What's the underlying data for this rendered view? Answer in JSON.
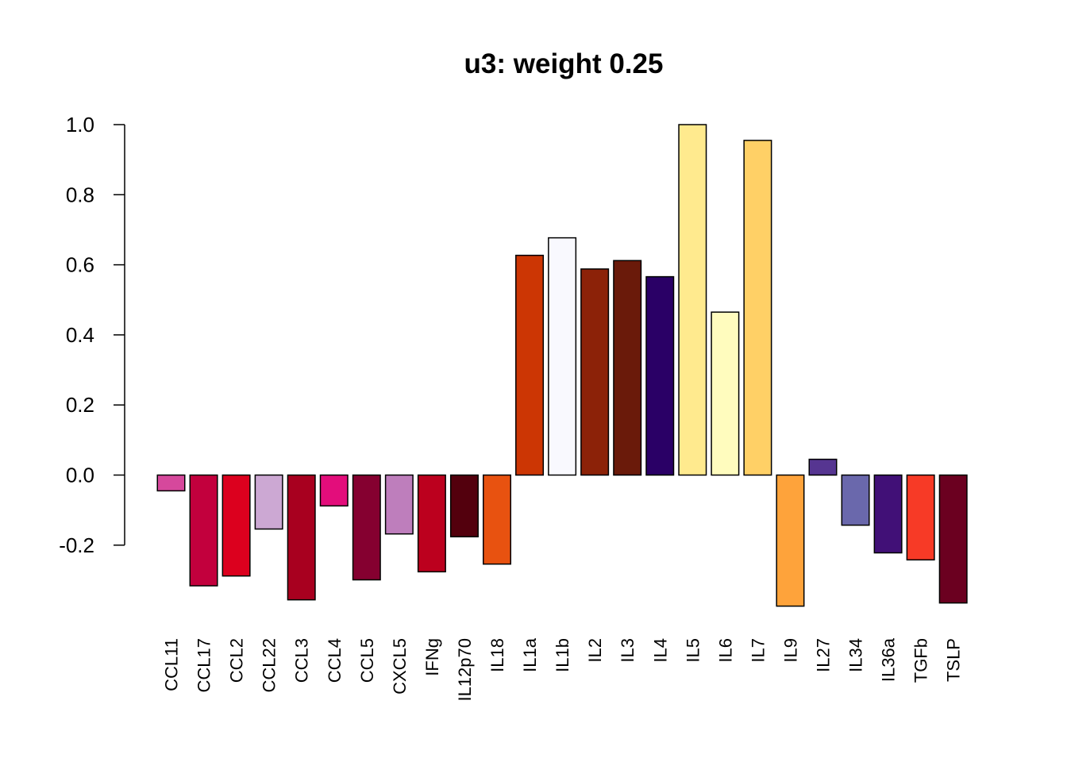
{
  "chart_data": {
    "type": "bar",
    "title": "u3: weight 0.25",
    "xlabel": "",
    "ylabel": "",
    "ylim": [
      -0.374,
      1.0
    ],
    "y_ticks": [
      "1.0",
      "0.8",
      "0.6",
      "0.4",
      "0.2",
      "0.0",
      "-0.2"
    ],
    "y_tick_values": [
      1.0,
      0.8,
      0.6,
      0.4,
      0.2,
      0.0,
      -0.2
    ],
    "grid": false,
    "legend": "none",
    "categories": [
      "CCL11",
      "CCL17",
      "CCL2",
      "CCL22",
      "CCL3",
      "CCL4",
      "CCL5",
      "CXCL5",
      "IFNg",
      "IL12p70",
      "IL18",
      "IL1a",
      "IL1b",
      "IL2",
      "IL3",
      "IL4",
      "IL5",
      "IL6",
      "IL7",
      "IL9",
      "IL27",
      "IL34",
      "IL36a",
      "TGFb",
      "TSLP"
    ],
    "values": [
      -0.045,
      -0.316,
      -0.288,
      -0.154,
      -0.356,
      -0.088,
      -0.299,
      -0.168,
      -0.276,
      -0.176,
      -0.254,
      0.627,
      0.677,
      0.588,
      0.612,
      0.566,
      1.0,
      0.465,
      0.955,
      -0.374,
      0.045,
      -0.143,
      -0.222,
      -0.242,
      -0.365
    ],
    "colors": [
      "#D6489C",
      "#C2003D",
      "#DC001E",
      "#CCA8D3",
      "#A8001F",
      "#E30D7B",
      "#850030",
      "#BE7EBC",
      "#BC001E",
      "#53000D",
      "#E85210",
      "#CC3604",
      "#F9F9FE",
      "#8C2208",
      "#6A1A0A",
      "#2A0066",
      "#FFEA8E",
      "#FFFCBE",
      "#FFD066",
      "#FEA33B",
      "#563591",
      "#6A68AC",
      "#411077",
      "#F73A26",
      "#6B0020"
    ]
  }
}
